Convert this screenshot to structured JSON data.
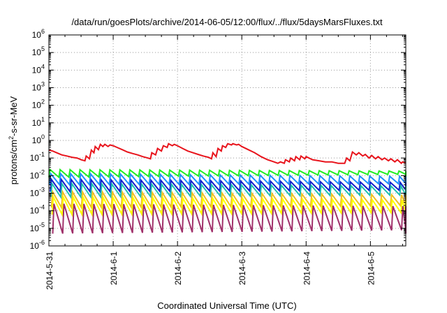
{
  "chart_data": {
    "type": "line",
    "title": "/data/run/goesPlots/archive/2014-06-05/12:00/flux/../flux/5daysMarsFluxes.txt",
    "xlabel": "Coordinated Universal Time (UTC)",
    "ylabel": {
      "prefix": "protons/cm",
      "sup": "2",
      "suffix": "-s-sr-MeV"
    },
    "yscale": "log",
    "ylim_exp": [
      -6,
      6
    ],
    "y_tick_exponents": [
      -6,
      -5,
      -4,
      -3,
      -2,
      -1,
      0,
      1,
      2,
      3,
      4,
      5,
      6
    ],
    "xlim_days": [
      0,
      5.55
    ],
    "x_ticks": [
      {
        "label": "2014-5-31",
        "day": 0
      },
      {
        "label": "2014-6-1",
        "day": 1
      },
      {
        "label": "2014-6-2",
        "day": 2
      },
      {
        "label": "2014-6-3",
        "day": 3
      },
      {
        "label": "2014-6-4",
        "day": 4
      },
      {
        "label": "2014-6-5",
        "day": 5
      }
    ],
    "grid": true,
    "series": [
      {
        "color": "#e8141c",
        "x": [
          0,
          0.06,
          0.12,
          0.2,
          0.28,
          0.36,
          0.44,
          0.5,
          0.56,
          0.58,
          0.63,
          0.66,
          0.7,
          0.72,
          0.77,
          0.8,
          0.84,
          0.87,
          0.92,
          0.95,
          1,
          1.06,
          1.14,
          1.22,
          1.3,
          1.38,
          1.46,
          1.54,
          1.58,
          1.6,
          1.66,
          1.69,
          1.75,
          1.78,
          1.84,
          1.86,
          1.92,
          1.95,
          2,
          2.08,
          2.16,
          2.24,
          2.32,
          2.4,
          2.48,
          2.53,
          2.55,
          2.6,
          2.63,
          2.68,
          2.7,
          2.75,
          2.78,
          2.84,
          2.86,
          2.92,
          2.95,
          3.0,
          3.1,
          3.2,
          3.3,
          3.4,
          3.5,
          3.56,
          3.6,
          3.66,
          3.68,
          3.74,
          3.76,
          3.82,
          3.84,
          3.9,
          3.92,
          3.98,
          4.0,
          4.1,
          4.2,
          4.3,
          4.4,
          4.5,
          4.56,
          4.6,
          4.63,
          4.68,
          4.72,
          4.78,
          4.82,
          4.88,
          4.92,
          4.98,
          5.02,
          5.08,
          5.12,
          5.18,
          5.22,
          5.28,
          5.32,
          5.38,
          5.42,
          5.48,
          5.5,
          5.55
        ],
        "y": [
          0.28,
          0.25,
          0.2,
          0.15,
          0.13,
          0.11,
          0.1,
          0.08,
          0.07,
          0.13,
          0.09,
          0.28,
          0.2,
          0.45,
          0.3,
          0.6,
          0.45,
          0.6,
          0.45,
          0.55,
          0.5,
          0.4,
          0.3,
          0.22,
          0.18,
          0.15,
          0.12,
          0.1,
          0.09,
          0.2,
          0.15,
          0.35,
          0.25,
          0.5,
          0.4,
          0.65,
          0.5,
          0.6,
          0.5,
          0.35,
          0.25,
          0.2,
          0.16,
          0.13,
          0.11,
          0.09,
          0.2,
          0.12,
          0.35,
          0.25,
          0.5,
          0.4,
          0.65,
          0.55,
          0.65,
          0.55,
          0.6,
          0.45,
          0.3,
          0.2,
          0.12,
          0.08,
          0.06,
          0.05,
          0.06,
          0.05,
          0.08,
          0.06,
          0.1,
          0.07,
          0.12,
          0.08,
          0.13,
          0.09,
          0.12,
          0.08,
          0.07,
          0.06,
          0.06,
          0.05,
          0.05,
          0.05,
          0.1,
          0.07,
          0.22,
          0.15,
          0.2,
          0.13,
          0.16,
          0.1,
          0.14,
          0.09,
          0.12,
          0.08,
          0.1,
          0.07,
          0.09,
          0.06,
          0.08,
          0.05,
          0.06,
          0.05
        ]
      },
      {
        "color": "#22ee22",
        "x": [],
        "y": [],
        "pattern": {
          "period": 0.155,
          "start": 0.0,
          "hi": 0.022,
          "lo": 0.008,
          "decay_end": 0.012,
          "hi_end": 0.018
        }
      },
      {
        "color": "#1e90ff",
        "x": [],
        "y": [],
        "pattern": {
          "period": 0.155,
          "start": 0.01,
          "hi": 0.013,
          "lo": 0.003,
          "decay_end": 0.0035,
          "hi_end": 0.009
        }
      },
      {
        "color": "#1020cc",
        "x": [],
        "y": [],
        "pattern": {
          "period": 0.155,
          "start": 0.02,
          "hi": 0.006,
          "lo": 0.0012,
          "decay_end": 0.0015,
          "hi_end": 0.004
        }
      },
      {
        "color": "#20c0b0",
        "x": [],
        "y": [],
        "pattern": {
          "period": 0.155,
          "start": 0.03,
          "hi": 0.0035,
          "lo": 0.0006,
          "decay_end": 0.0008,
          "hi_end": 0.0025
        }
      },
      {
        "color": "#f0c020",
        "x": [],
        "y": [],
        "pattern": {
          "period": 0.155,
          "start": 0.04,
          "hi": 0.0012,
          "lo": 0.00015,
          "decay_end": 0.0002,
          "hi_end": 0.0008
        }
      },
      {
        "color": "#ffff00",
        "x": [],
        "y": [],
        "pattern": {
          "period": 0.155,
          "start": 0.05,
          "hi": 0.0006,
          "lo": 6e-05,
          "decay_end": 8e-05,
          "hi_end": 0.0004
        }
      },
      {
        "color": "#a0306a",
        "x": [],
        "y": [],
        "pattern": {
          "period": 0.155,
          "start": 0.06,
          "hi": 0.00025,
          "lo": 5e-06,
          "decay_end": 8e-06,
          "hi_end": 0.00018
        }
      }
    ]
  }
}
